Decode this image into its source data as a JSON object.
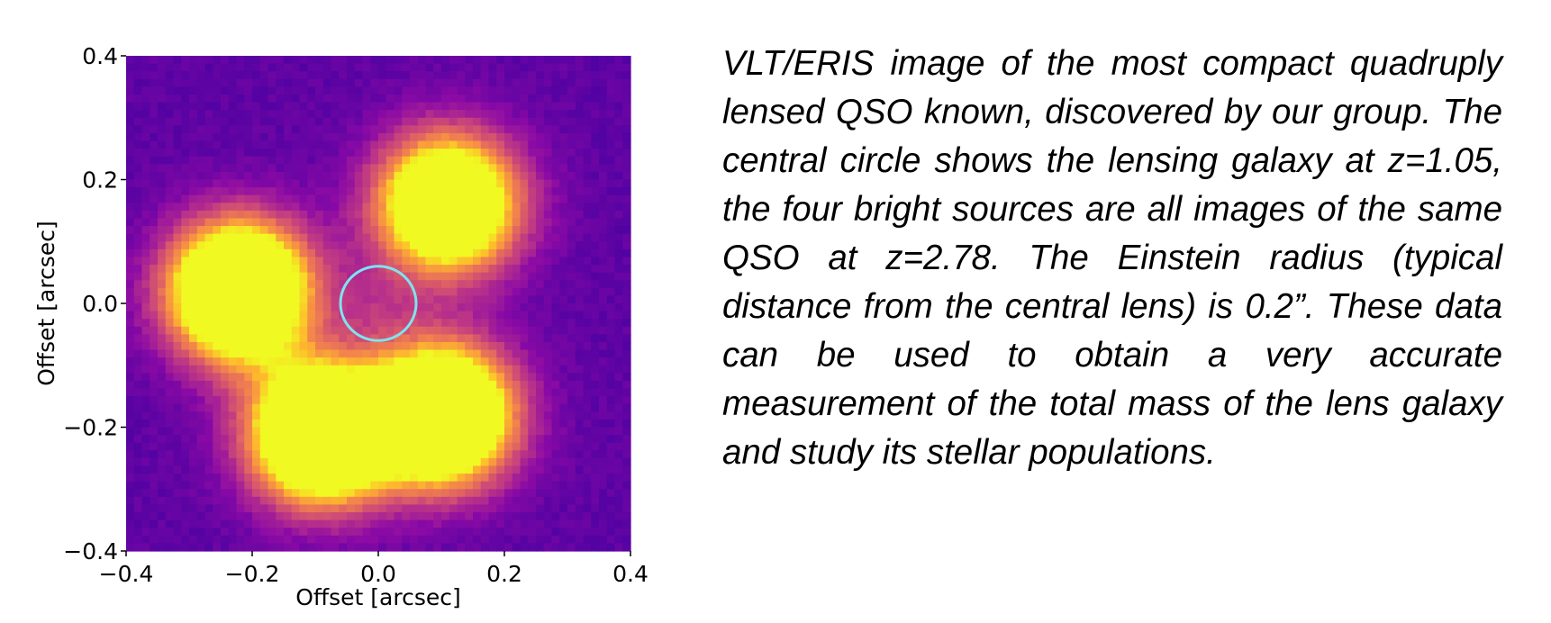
{
  "caption": "VLT/ERIS image of the most compact quadruply lensed QSO known, discovered by our group. The central circle shows the lensing galaxy at z=1.05, the four bright sources are all images of the same QSO at z=2.78. The Einstein radius (typical distance from the central lens) is 0.2”. These data can be used to obtain a very accurate measurement of the total mass of the lens galaxy and study its stellar populations.",
  "chart_data": {
    "type": "heatmap",
    "xlabel": "Offset [arcsec]",
    "ylabel": "Offset [arcsec]",
    "xlim": [
      -0.4,
      0.4
    ],
    "ylim": [
      -0.4,
      0.4
    ],
    "x_ticks": [
      "−0.4",
      "−0.2",
      "0.0",
      "0.2",
      "0.4"
    ],
    "y_ticks": [
      "0.4",
      "0.2",
      "0.0",
      "−0.2",
      "−0.4"
    ],
    "x_tick_values": [
      -0.4,
      -0.2,
      0.0,
      0.2,
      0.4
    ],
    "y_tick_values": [
      0.4,
      0.2,
      0.0,
      -0.2,
      -0.4
    ],
    "colormap": "plasma",
    "grid": false,
    "sources": [
      {
        "x": -0.22,
        "y": 0.02,
        "brightness": 1.0
      },
      {
        "x": 0.11,
        "y": 0.16,
        "brightness": 0.85
      },
      {
        "x": -0.09,
        "y": -0.21,
        "brightness": 1.0
      },
      {
        "x": 0.1,
        "y": -0.18,
        "brightness": 1.0
      }
    ],
    "lens_galaxy": {
      "x": 0.0,
      "y": 0.0,
      "brightness": 0.18
    },
    "lens_circle": {
      "x": 0.0,
      "y": 0.0,
      "radius": 0.06,
      "color": "#7fe3f0"
    }
  }
}
